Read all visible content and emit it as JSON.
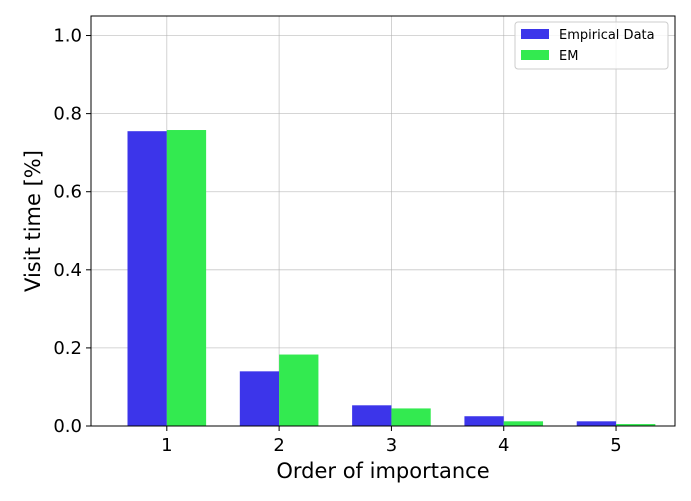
{
  "chart_data": {
    "type": "bar",
    "categories": [
      "1",
      "2",
      "3",
      "4",
      "5"
    ],
    "series": [
      {
        "name": "Empirical Data",
        "color": "#3c35ea",
        "values": [
          0.755,
          0.14,
          0.053,
          0.025,
          0.012
        ]
      },
      {
        "name": "EM",
        "color": "#33ea50",
        "values": [
          0.758,
          0.183,
          0.045,
          0.012,
          0.005
        ]
      }
    ],
    "xlabel": "Order of importance",
    "ylabel": "Visit time [%]",
    "ylim": [
      0,
      1.05
    ],
    "yticks": [
      "0.0",
      "0.2",
      "0.4",
      "0.6",
      "0.8",
      "1.0"
    ],
    "grid": true,
    "legend_position": "top-right"
  }
}
